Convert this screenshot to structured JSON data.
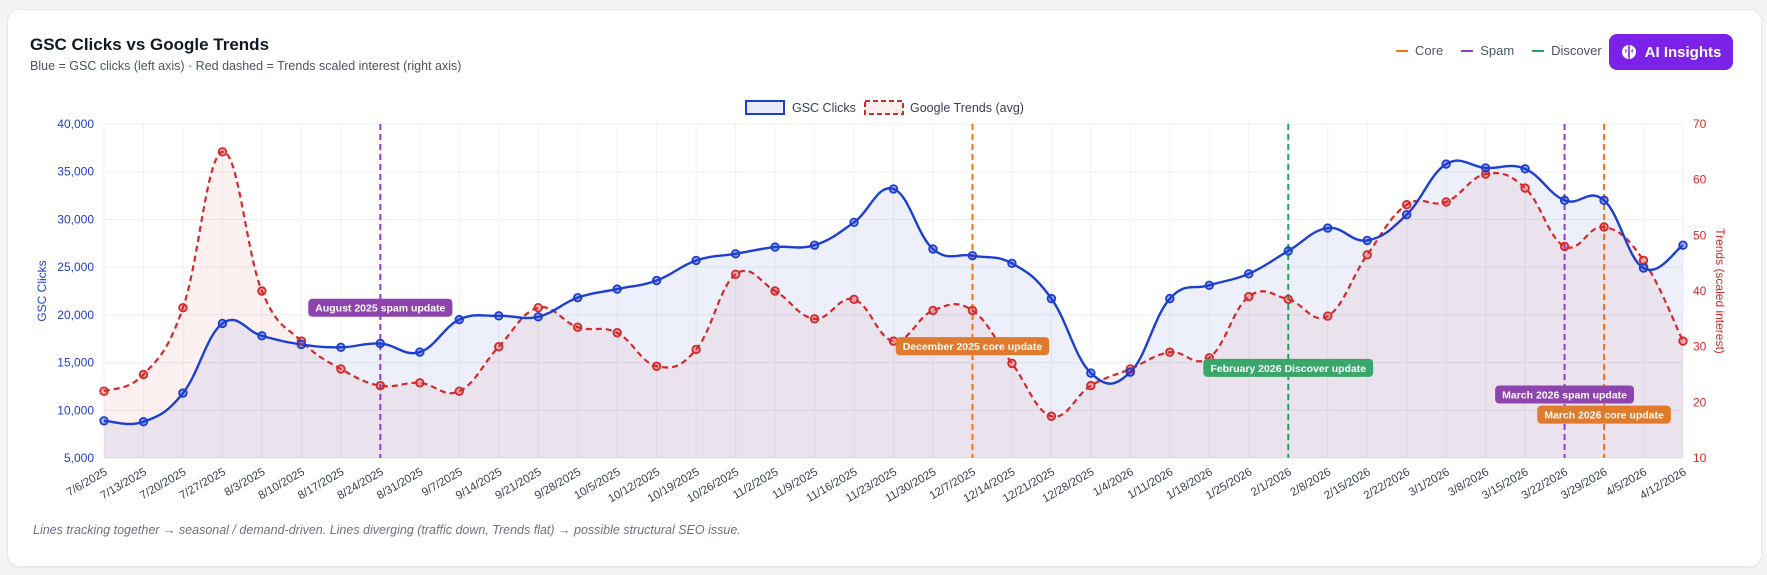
{
  "header": {
    "title": "GSC Clicks vs Google Trends",
    "subtitle": "Blue = GSC clicks (left axis) · Red dashed = Trends scaled interest (right axis)",
    "ai_button_label": "AI Insights",
    "ai_icon": "brain-icon"
  },
  "event_legend": [
    {
      "label": "Core",
      "color": "#f97316"
    },
    {
      "label": "Spam",
      "color": "#8b3fd1"
    },
    {
      "label": "Discover",
      "color": "#22a35a"
    }
  ],
  "footnote": "Lines tracking together → seasonal / demand-driven. Lines diverging (traffic down, Trends flat) → possible structural SEO issue.",
  "colors": {
    "clicks": "#1d3fd1",
    "trends": "#d42a2a",
    "core": "#f97316",
    "spam": "#8b3fd1",
    "discover": "#22a35a",
    "core_label_bg": "#e07a2c",
    "spam_label_bg": "#8e44ad",
    "discover_label_bg": "#3aa66a"
  },
  "chart_data": {
    "type": "line",
    "x": [
      "7/6/2025",
      "7/13/2025",
      "7/20/2025",
      "7/27/2025",
      "8/3/2025",
      "8/10/2025",
      "8/17/2025",
      "8/24/2025",
      "8/31/2025",
      "9/7/2025",
      "9/14/2025",
      "9/21/2025",
      "9/28/2025",
      "10/5/2025",
      "10/12/2025",
      "10/19/2025",
      "10/26/2025",
      "11/2/2025",
      "11/9/2025",
      "11/16/2025",
      "11/23/2025",
      "11/30/2025",
      "12/7/2025",
      "12/14/2025",
      "12/21/2025",
      "12/28/2025",
      "1/4/2026",
      "1/11/2026",
      "1/18/2026",
      "1/25/2026",
      "2/1/2026",
      "2/8/2026",
      "2/15/2026",
      "2/22/2026",
      "3/1/2026",
      "3/8/2026",
      "3/15/2026",
      "3/22/2026",
      "3/29/2026",
      "4/5/2026",
      "4/12/2026"
    ],
    "series": [
      {
        "name": "GSC Clicks",
        "axis": "left",
        "values": [
          8900,
          8800,
          11800,
          19100,
          17800,
          16900,
          16600,
          17000,
          16100,
          19500,
          19900,
          19800,
          21800,
          22700,
          23600,
          25700,
          26400,
          27100,
          27300,
          29700,
          33200,
          26900,
          26200,
          25400,
          21700,
          13900,
          14000,
          21700,
          23100,
          24300,
          26700,
          29100,
          27800,
          30500,
          35800,
          35400,
          35300,
          32000,
          32000,
          24900,
          27300
        ]
      },
      {
        "name": "Google Trends (avg)",
        "axis": "right",
        "values": [
          22,
          25,
          37,
          65,
          40,
          31,
          26,
          23,
          23.5,
          22,
          30,
          37,
          33.5,
          32.5,
          26.5,
          29.5,
          43,
          40,
          35,
          38.5,
          31,
          36.5,
          36.5,
          27,
          17.5,
          23,
          26,
          29,
          28,
          39,
          38.5,
          35.5,
          46.5,
          55.5,
          56,
          61,
          58.5,
          48,
          51.5,
          45.5,
          31
        ]
      }
    ],
    "y_left": {
      "label": "GSC Clicks",
      "min": 5000,
      "max": 40000,
      "ticks": [
        "5,000",
        "10,000",
        "15,000",
        "20,000",
        "25,000",
        "30,000",
        "35,000",
        "40,000"
      ]
    },
    "y_right": {
      "label": "Trends (scaled interest)",
      "min": 10,
      "max": 70,
      "ticks": [
        "10",
        "20",
        "30",
        "40",
        "50",
        "60",
        "70"
      ]
    },
    "grid": true,
    "legend_position": "top-center",
    "events": [
      {
        "x": "8/24/2025",
        "type": "spam",
        "label": "August 2025 spam update"
      },
      {
        "x": "12/7/2025",
        "type": "core",
        "label": "December 2025 core update"
      },
      {
        "x": "2/1/2026",
        "type": "discover",
        "label": "February 2026 Discover update"
      },
      {
        "x": "3/22/2026",
        "type": "spam",
        "label": "March 2026 spam update"
      },
      {
        "x": "3/29/2026",
        "type": "core",
        "label": "March 2026 core update"
      }
    ]
  }
}
